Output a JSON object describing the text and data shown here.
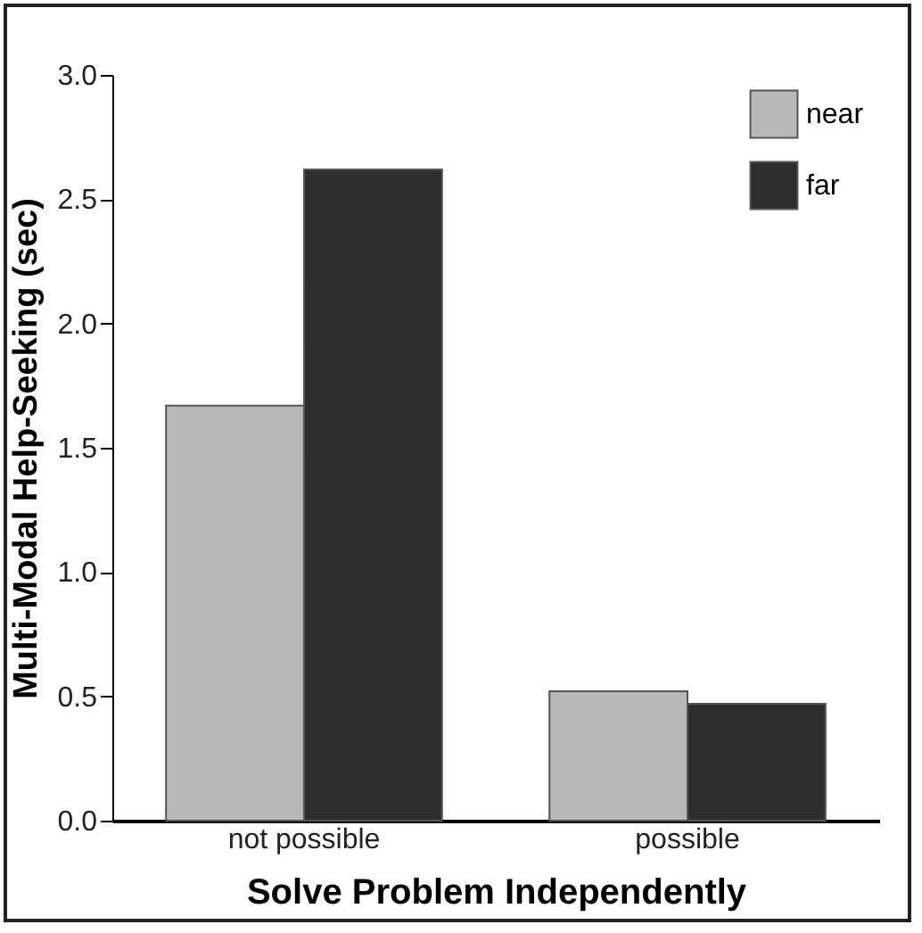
{
  "chart_data": {
    "type": "bar",
    "xlabel": "Solve Problem Independently",
    "ylabel": "Multi-Modal Help-Seeking (sec)",
    "categories": [
      "not possible",
      "possible"
    ],
    "series": [
      {
        "name": "near",
        "color": "#b8b8b8",
        "values": [
          1.67,
          0.52
        ]
      },
      {
        "name": "far",
        "color": "#2e2e2e",
        "values": [
          2.62,
          0.47
        ]
      }
    ],
    "ylim": [
      0,
      3
    ],
    "yticks": [
      {
        "value": 0,
        "label": "0.0"
      },
      {
        "value": 0.5,
        "label": "0.5"
      },
      {
        "value": 1,
        "label": "1.0"
      },
      {
        "value": 1.5,
        "label": "1.5"
      },
      {
        "value": 2,
        "label": "2.0"
      },
      {
        "value": 2.5,
        "label": "2.5"
      },
      {
        "value": 3,
        "label": "3.0"
      }
    ],
    "grid": false,
    "legend": "top right"
  }
}
